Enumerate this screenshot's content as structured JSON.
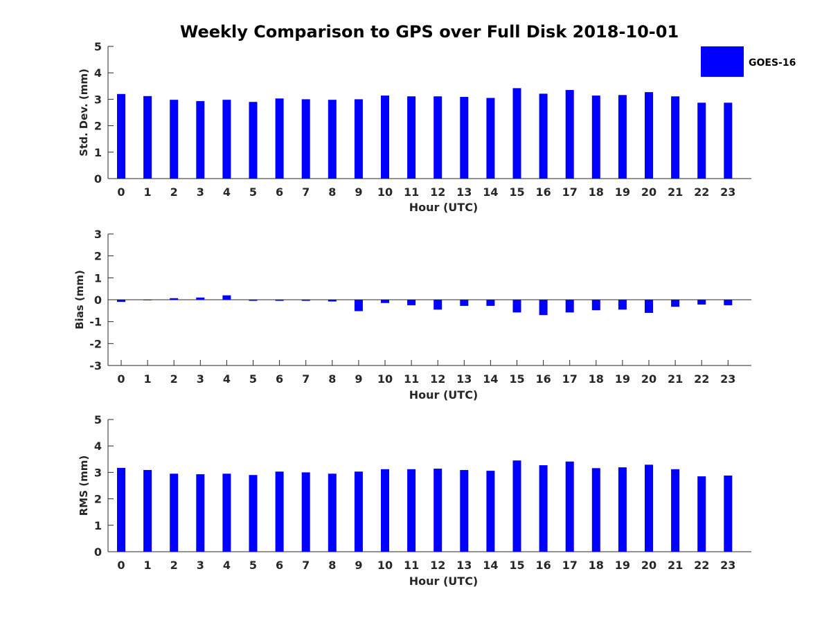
{
  "chart_data": {
    "title": "Weekly Comparison to GPS over Full Disk 2018-10-01",
    "legend": {
      "label": "GOES-16",
      "placement": "top-right",
      "color": "#0000ff"
    },
    "bar_color": "#0000ff",
    "categories": [
      "0",
      "1",
      "2",
      "3",
      "4",
      "5",
      "6",
      "7",
      "8",
      "9",
      "10",
      "11",
      "12",
      "13",
      "14",
      "15",
      "16",
      "17",
      "18",
      "19",
      "20",
      "21",
      "22",
      "23"
    ],
    "panels": [
      {
        "type": "bar",
        "ylabel": "Std. Dev. (mm)",
        "xlabel": "Hour (UTC)",
        "ylim": [
          0,
          5
        ],
        "yticks": [
          0,
          1,
          2,
          3,
          4,
          5
        ],
        "series": [
          {
            "name": "GOES-16",
            "values": [
              3.2,
              3.12,
              2.98,
              2.93,
              2.98,
              2.9,
              3.03,
              3.0,
              2.98,
              3.0,
              3.14,
              3.11,
              3.11,
              3.09,
              3.05,
              3.42,
              3.21,
              3.35,
              3.14,
              3.16,
              3.27,
              3.11,
              2.87,
              2.87
            ]
          }
        ]
      },
      {
        "type": "bar",
        "ylabel": "Bias (mm)",
        "xlabel": "Hour (UTC)",
        "ylim": [
          -3,
          3
        ],
        "yticks": [
          -3,
          -2,
          -1,
          0,
          1,
          2,
          3
        ],
        "zero_line": true,
        "series": [
          {
            "name": "GOES-16",
            "values": [
              -0.1,
              -0.02,
              0.07,
              0.1,
              0.2,
              -0.05,
              -0.05,
              -0.05,
              -0.08,
              -0.52,
              -0.15,
              -0.25,
              -0.45,
              -0.28,
              -0.28,
              -0.58,
              -0.7,
              -0.58,
              -0.48,
              -0.45,
              -0.6,
              -0.32,
              -0.22,
              -0.25
            ]
          }
        ]
      },
      {
        "type": "bar",
        "ylabel": "RMS (mm)",
        "xlabel": "Hour (UTC)",
        "ylim": [
          0,
          5
        ],
        "yticks": [
          0,
          1,
          2,
          3,
          4,
          5
        ],
        "series": [
          {
            "name": "GOES-16",
            "values": [
              3.17,
              3.09,
              2.95,
              2.93,
              2.95,
              2.9,
              3.03,
              3.0,
              2.95,
              3.03,
              3.12,
              3.12,
              3.14,
              3.09,
              3.06,
              3.45,
              3.27,
              3.41,
              3.16,
              3.19,
              3.29,
              3.12,
              2.85,
              2.88
            ]
          }
        ]
      }
    ]
  }
}
